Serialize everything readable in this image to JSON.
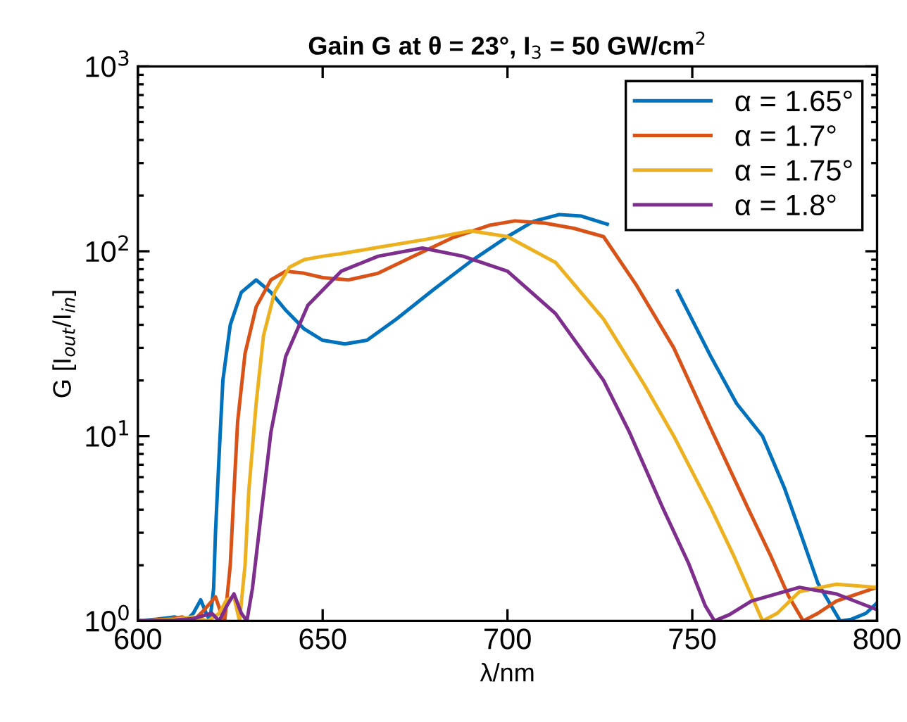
{
  "chart_data": {
    "type": "line",
    "title": "Gain G at θ = 23°, I$_{3}$ = 50 GW/cm$^{2}$",
    "xlabel": "λ/nm",
    "ylabel": "G [I$_{out}$/I$_{in}$]",
    "log": "y",
    "xlim": [
      600,
      800
    ],
    "ylim": [
      1,
      1000
    ],
    "xticks": [
      600,
      650,
      700,
      750,
      800
    ],
    "yticks": [
      {
        "value": 1,
        "label": "10$^{0}$"
      },
      {
        "value": 10,
        "label": "10$^{1}$"
      },
      {
        "value": 100,
        "label": "10$^{2}$"
      },
      {
        "value": 1000,
        "label": "10$^{3}$"
      }
    ],
    "grid": false,
    "legend": "top right",
    "marker": "none",
    "line_style": "solid",
    "series": [
      {
        "name": "α = 1.65°",
        "color": "#0072bd",
        "x": [
          600,
          605,
          610,
          613,
          615,
          617,
          618.5,
          619.5,
          620.5,
          621,
          622,
          623,
          625,
          628,
          632,
          636,
          640,
          645,
          650,
          656,
          662,
          670,
          680,
          690,
          700,
          707,
          714,
          720,
          727,
          736,
          742,
          746,
          755,
          762,
          769,
          775,
          779,
          784,
          790,
          793,
          797,
          800
        ],
        "values": [
          1.0,
          1.02,
          1.05,
          1.0,
          1.1,
          1.3,
          1.1,
          1.0,
          1.5,
          3,
          8,
          20,
          40,
          60,
          70,
          60,
          48,
          38,
          33,
          31.5,
          33,
          43,
          62,
          88,
          120,
          145,
          158,
          155,
          140,
          null,
          null,
          61,
          27,
          15,
          10,
          5.2,
          3.1,
          1.6,
          1.0,
          1.02,
          1.1,
          1.25
        ]
      },
      {
        "name": "α = 1.7°",
        "color": "#d95319",
        "x": [
          600,
          608,
          612,
          615,
          618,
          621,
          622.5,
          623.5,
          625,
          626,
          627,
          629,
          632,
          636,
          640,
          645,
          650,
          657,
          665,
          675,
          685,
          695,
          702,
          710,
          718,
          726,
          735,
          745,
          755,
          765,
          771,
          776,
          780,
          784,
          789,
          800
        ],
        "values": [
          1.0,
          1.02,
          1.05,
          1.0,
          1.15,
          1.35,
          1.1,
          1.0,
          2,
          5,
          12,
          28,
          50,
          70,
          78,
          76,
          72,
          70,
          76,
          95,
          118,
          138,
          146,
          142,
          133,
          120,
          65,
          30,
          11,
          4.1,
          2.3,
          1.37,
          1.0,
          1.1,
          1.28,
          1.52
        ]
      },
      {
        "name": "α = 1.75°",
        "color": "#edb120",
        "x": [
          600,
          610,
          615,
          619,
          622,
          624,
          626,
          627.5,
          629,
          630,
          632,
          634,
          637,
          641,
          645,
          650,
          655,
          665,
          678,
          690,
          700,
          713,
          726,
          737,
          745,
          755,
          761,
          766,
          769,
          773,
          779,
          789,
          800
        ],
        "values": [
          1.0,
          1.02,
          1.05,
          1.0,
          1.1,
          1.3,
          1.35,
          1.0,
          2,
          5,
          15,
          35,
          60,
          82,
          90,
          94,
          97,
          105,
          116,
          129,
          120,
          87,
          43,
          19,
          10,
          4.1,
          2.3,
          1.37,
          1.0,
          1.1,
          1.44,
          1.58,
          1.52
        ]
      },
      {
        "name": "α = 1.8°",
        "color": "#7e2f8e",
        "x": [
          600,
          610,
          615,
          620,
          622,
          624,
          626,
          628,
          629.5,
          631,
          633,
          636,
          640,
          646,
          655,
          665,
          677,
          688,
          700,
          713,
          726,
          733,
          742,
          749,
          753.5,
          756,
          760,
          766,
          779,
          789,
          800
        ],
        "values": [
          1.0,
          1.01,
          1.03,
          1.1,
          1.0,
          1.2,
          1.4,
          1.1,
          1.0,
          1.5,
          3.3,
          10.5,
          27,
          51,
          78,
          94,
          104,
          94,
          78,
          46,
          20,
          10.5,
          4.1,
          2.05,
          1.21,
          1.0,
          1.08,
          1.28,
          1.52,
          1.4,
          1.15
        ]
      }
    ]
  }
}
